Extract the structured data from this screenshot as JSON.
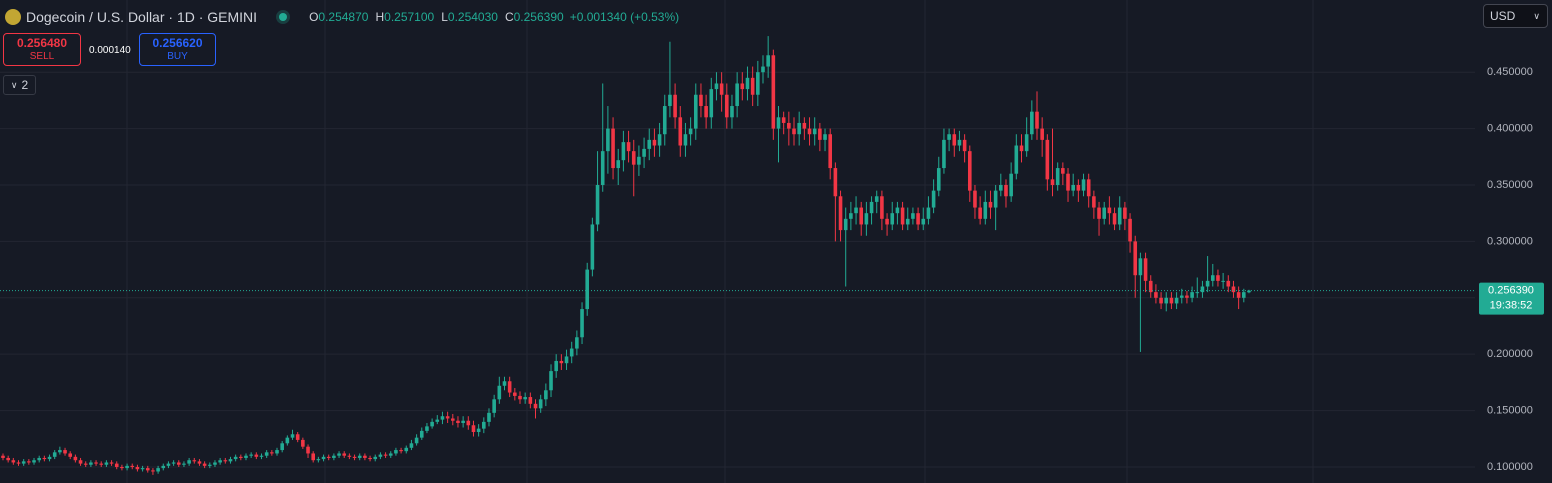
{
  "header": {
    "symbol": "Dogecoin / U.S. Dollar · 1D · GEMINI",
    "ohlc": [
      {
        "key": "O",
        "value": "0.254870"
      },
      {
        "key": "H",
        "value": "0.257100"
      },
      {
        "key": "L",
        "value": "0.254030"
      },
      {
        "key": "C",
        "value": "0.256390"
      }
    ],
    "change": "+0.001340 (+0.53%)"
  },
  "trade": {
    "sell_price": "0.256480",
    "sell_label": "SELL",
    "spread": "0.000140",
    "buy_price": "0.256620",
    "buy_label": "BUY"
  },
  "indicators_count": "2",
  "currency": "USD",
  "chart_data": {
    "type": "candlestick",
    "up_color": "#22ab94",
    "down_color": "#f23645",
    "grid": true,
    "ylim": [
      0.0858,
      0.514
    ],
    "yticks": [
      {
        "value": 0.1,
        "label": "0.100000"
      },
      {
        "value": 0.15,
        "label": "0.150000"
      },
      {
        "value": 0.2,
        "label": "0.200000"
      },
      {
        "value": 0.25,
        "label": "0.250000"
      },
      {
        "value": 0.3,
        "label": "0.300000"
      },
      {
        "value": 0.35,
        "label": "0.350000"
      },
      {
        "value": 0.4,
        "label": "0.400000"
      },
      {
        "value": 0.45,
        "label": "0.450000"
      }
    ],
    "last_price": {
      "value": 0.25639,
      "label": "0.256390"
    },
    "countdown": "19:38:52",
    "open": [
      0.11,
      0.108,
      0.106,
      0.104,
      0.103,
      0.105,
      0.104,
      0.106,
      0.108,
      0.107,
      0.109,
      0.113,
      0.115,
      0.112,
      0.109,
      0.106,
      0.103,
      0.102,
      0.104,
      0.103,
      0.102,
      0.104,
      0.103,
      0.1,
      0.099,
      0.101,
      0.1,
      0.098,
      0.099,
      0.097,
      0.096,
      0.099,
      0.101,
      0.103,
      0.104,
      0.102,
      0.103,
      0.106,
      0.105,
      0.103,
      0.101,
      0.102,
      0.104,
      0.106,
      0.105,
      0.107,
      0.109,
      0.108,
      0.11,
      0.111,
      0.109,
      0.11,
      0.113,
      0.112,
      0.115,
      0.121,
      0.126,
      0.129,
      0.124,
      0.118,
      0.112,
      0.106,
      0.107,
      0.109,
      0.108,
      0.11,
      0.112,
      0.11,
      0.109,
      0.108,
      0.11,
      0.108,
      0.107,
      0.109,
      0.111,
      0.11,
      0.112,
      0.115,
      0.114,
      0.117,
      0.121,
      0.126,
      0.132,
      0.136,
      0.14,
      0.142,
      0.145,
      0.143,
      0.141,
      0.139,
      0.141,
      0.137,
      0.131,
      0.134,
      0.14,
      0.148,
      0.16,
      0.172,
      0.176,
      0.166,
      0.163,
      0.16,
      0.162,
      0.156,
      0.152,
      0.16,
      0.168,
      0.185,
      0.194,
      0.192,
      0.198,
      0.205,
      0.215,
      0.24,
      0.275,
      0.315,
      0.35,
      0.38,
      0.4,
      0.365,
      0.372,
      0.388,
      0.38,
      0.368,
      0.375,
      0.382,
      0.39,
      0.385,
      0.395,
      0.42,
      0.43,
      0.41,
      0.385,
      0.395,
      0.4,
      0.43,
      0.42,
      0.41,
      0.435,
      0.44,
      0.43,
      0.41,
      0.42,
      0.44,
      0.435,
      0.445,
      0.43,
      0.45,
      0.455,
      0.465,
      0.4,
      0.41,
      0.405,
      0.4,
      0.395,
      0.405,
      0.4,
      0.395,
      0.4,
      0.39,
      0.395,
      0.365,
      0.34,
      0.31,
      0.32,
      0.325,
      0.33,
      0.315,
      0.325,
      0.335,
      0.34,
      0.32,
      0.315,
      0.325,
      0.33,
      0.315,
      0.32,
      0.325,
      0.315,
      0.32,
      0.33,
      0.345,
      0.365,
      0.39,
      0.395,
      0.385,
      0.39,
      0.38,
      0.345,
      0.33,
      0.32,
      0.335,
      0.33,
      0.345,
      0.35,
      0.34,
      0.36,
      0.385,
      0.38,
      0.395,
      0.415,
      0.4,
      0.39,
      0.355,
      0.35,
      0.365,
      0.36,
      0.345,
      0.35,
      0.345,
      0.355,
      0.34,
      0.33,
      0.32,
      0.33,
      0.325,
      0.315,
      0.33,
      0.32,
      0.3,
      0.27,
      0.285,
      0.265,
      0.255,
      0.25,
      0.245,
      0.25,
      0.245,
      0.25,
      0.252,
      0.25,
      0.255,
      0.255,
      0.26,
      0.265,
      0.27,
      0.265,
      0.265,
      0.26,
      0.255,
      0.25,
      0.25487
    ],
    "high": [
      0.112,
      0.11,
      0.108,
      0.106,
      0.107,
      0.107,
      0.108,
      0.11,
      0.11,
      0.111,
      0.115,
      0.118,
      0.117,
      0.114,
      0.111,
      0.108,
      0.105,
      0.106,
      0.106,
      0.105,
      0.106,
      0.106,
      0.105,
      0.102,
      0.103,
      0.103,
      0.102,
      0.101,
      0.101,
      0.099,
      0.101,
      0.103,
      0.105,
      0.106,
      0.106,
      0.105,
      0.108,
      0.108,
      0.107,
      0.105,
      0.104,
      0.106,
      0.108,
      0.108,
      0.109,
      0.111,
      0.111,
      0.112,
      0.113,
      0.113,
      0.112,
      0.115,
      0.115,
      0.117,
      0.123,
      0.128,
      0.133,
      0.131,
      0.126,
      0.12,
      0.114,
      0.109,
      0.111,
      0.111,
      0.112,
      0.114,
      0.114,
      0.112,
      0.111,
      0.112,
      0.112,
      0.11,
      0.111,
      0.113,
      0.113,
      0.114,
      0.117,
      0.117,
      0.119,
      0.124,
      0.129,
      0.135,
      0.139,
      0.143,
      0.146,
      0.149,
      0.149,
      0.147,
      0.145,
      0.145,
      0.145,
      0.141,
      0.138,
      0.144,
      0.152,
      0.164,
      0.18,
      0.18,
      0.18,
      0.17,
      0.167,
      0.166,
      0.166,
      0.16,
      0.164,
      0.174,
      0.191,
      0.2,
      0.2,
      0.204,
      0.211,
      0.221,
      0.246,
      0.281,
      0.321,
      0.38,
      0.44,
      0.42,
      0.41,
      0.382,
      0.398,
      0.398,
      0.39,
      0.385,
      0.392,
      0.4,
      0.4,
      0.405,
      0.43,
      0.477,
      0.44,
      0.42,
      0.405,
      0.41,
      0.44,
      0.44,
      0.43,
      0.445,
      0.45,
      0.45,
      0.44,
      0.43,
      0.45,
      0.45,
      0.455,
      0.455,
      0.46,
      0.465,
      0.482,
      0.47,
      0.42,
      0.415,
      0.415,
      0.41,
      0.415,
      0.41,
      0.41,
      0.41,
      0.405,
      0.4,
      0.4,
      0.37,
      0.345,
      0.33,
      0.335,
      0.34,
      0.335,
      0.335,
      0.34,
      0.345,
      0.345,
      0.325,
      0.335,
      0.335,
      0.335,
      0.33,
      0.33,
      0.33,
      0.33,
      0.34,
      0.355,
      0.375,
      0.4,
      0.4,
      0.4,
      0.398,
      0.395,
      0.385,
      0.35,
      0.34,
      0.345,
      0.345,
      0.35,
      0.36,
      0.355,
      0.37,
      0.395,
      0.395,
      0.41,
      0.425,
      0.433,
      0.41,
      0.395,
      0.4,
      0.37,
      0.37,
      0.365,
      0.36,
      0.355,
      0.36,
      0.36,
      0.345,
      0.335,
      0.335,
      0.34,
      0.33,
      0.34,
      0.335,
      0.325,
      0.305,
      0.29,
      0.29,
      0.27,
      0.262,
      0.255,
      0.255,
      0.255,
      0.255,
      0.258,
      0.256,
      0.26,
      0.268,
      0.265,
      0.287,
      0.28,
      0.275,
      0.272,
      0.27,
      0.265,
      0.26,
      0.258,
      0.2571
    ],
    "low": [
      0.106,
      0.104,
      0.102,
      0.101,
      0.101,
      0.102,
      0.102,
      0.104,
      0.105,
      0.105,
      0.107,
      0.111,
      0.11,
      0.107,
      0.104,
      0.101,
      0.1,
      0.1,
      0.101,
      0.1,
      0.1,
      0.101,
      0.098,
      0.097,
      0.097,
      0.098,
      0.096,
      0.096,
      0.095,
      0.093,
      0.094,
      0.097,
      0.099,
      0.101,
      0.1,
      0.1,
      0.101,
      0.103,
      0.101,
      0.099,
      0.099,
      0.1,
      0.102,
      0.103,
      0.103,
      0.105,
      0.106,
      0.106,
      0.108,
      0.107,
      0.107,
      0.108,
      0.11,
      0.11,
      0.113,
      0.119,
      0.124,
      0.122,
      0.116,
      0.108,
      0.104,
      0.104,
      0.105,
      0.106,
      0.106,
      0.108,
      0.108,
      0.107,
      0.106,
      0.106,
      0.106,
      0.105,
      0.105,
      0.107,
      0.108,
      0.108,
      0.11,
      0.112,
      0.112,
      0.115,
      0.119,
      0.124,
      0.13,
      0.134,
      0.138,
      0.138,
      0.139,
      0.137,
      0.135,
      0.135,
      0.133,
      0.127,
      0.127,
      0.13,
      0.136,
      0.144,
      0.156,
      0.168,
      0.162,
      0.159,
      0.156,
      0.156,
      0.152,
      0.143,
      0.148,
      0.154,
      0.162,
      0.179,
      0.186,
      0.186,
      0.192,
      0.199,
      0.209,
      0.234,
      0.269,
      0.309,
      0.344,
      0.36,
      0.355,
      0.35,
      0.362,
      0.37,
      0.34,
      0.358,
      0.365,
      0.372,
      0.375,
      0.375,
      0.385,
      0.41,
      0.4,
      0.375,
      0.375,
      0.385,
      0.39,
      0.41,
      0.4,
      0.4,
      0.425,
      0.415,
      0.4,
      0.4,
      0.41,
      0.425,
      0.425,
      0.42,
      0.42,
      0.44,
      0.445,
      0.39,
      0.37,
      0.395,
      0.385,
      0.385,
      0.385,
      0.39,
      0.385,
      0.385,
      0.38,
      0.38,
      0.355,
      0.3,
      0.3,
      0.26,
      0.31,
      0.315,
      0.305,
      0.305,
      0.315,
      0.325,
      0.31,
      0.305,
      0.31,
      0.315,
      0.31,
      0.31,
      0.315,
      0.31,
      0.31,
      0.315,
      0.325,
      0.34,
      0.36,
      0.38,
      0.375,
      0.38,
      0.37,
      0.335,
      0.32,
      0.315,
      0.315,
      0.32,
      0.31,
      0.34,
      0.33,
      0.335,
      0.355,
      0.37,
      0.375,
      0.39,
      0.39,
      0.375,
      0.345,
      0.34,
      0.345,
      0.35,
      0.335,
      0.34,
      0.335,
      0.34,
      0.33,
      0.32,
      0.305,
      0.315,
      0.315,
      0.31,
      0.31,
      0.31,
      0.29,
      0.25,
      0.202,
      0.255,
      0.25,
      0.245,
      0.24,
      0.238,
      0.24,
      0.24,
      0.245,
      0.245,
      0.246,
      0.25,
      0.25,
      0.255,
      0.26,
      0.26,
      0.258,
      0.255,
      0.25,
      0.24,
      0.246,
      0.25403
    ],
    "close": [
      0.108,
      0.106,
      0.104,
      0.103,
      0.105,
      0.104,
      0.106,
      0.108,
      0.107,
      0.109,
      0.113,
      0.115,
      0.112,
      0.109,
      0.106,
      0.103,
      0.102,
      0.104,
      0.103,
      0.102,
      0.104,
      0.103,
      0.1,
      0.099,
      0.101,
      0.1,
      0.098,
      0.099,
      0.097,
      0.096,
      0.099,
      0.101,
      0.103,
      0.104,
      0.102,
      0.103,
      0.106,
      0.105,
      0.103,
      0.101,
      0.102,
      0.104,
      0.106,
      0.105,
      0.107,
      0.109,
      0.108,
      0.11,
      0.111,
      0.109,
      0.11,
      0.113,
      0.112,
      0.115,
      0.121,
      0.126,
      0.129,
      0.124,
      0.118,
      0.112,
      0.106,
      0.107,
      0.109,
      0.108,
      0.11,
      0.112,
      0.11,
      0.109,
      0.108,
      0.11,
      0.108,
      0.107,
      0.109,
      0.111,
      0.11,
      0.112,
      0.115,
      0.114,
      0.117,
      0.121,
      0.126,
      0.132,
      0.136,
      0.14,
      0.142,
      0.145,
      0.143,
      0.141,
      0.139,
      0.141,
      0.137,
      0.131,
      0.134,
      0.14,
      0.148,
      0.16,
      0.172,
      0.176,
      0.166,
      0.163,
      0.16,
      0.162,
      0.156,
      0.152,
      0.16,
      0.168,
      0.185,
      0.194,
      0.192,
      0.198,
      0.205,
      0.215,
      0.24,
      0.275,
      0.315,
      0.35,
      0.38,
      0.4,
      0.365,
      0.372,
      0.388,
      0.38,
      0.368,
      0.375,
      0.382,
      0.39,
      0.385,
      0.395,
      0.42,
      0.43,
      0.41,
      0.385,
      0.395,
      0.4,
      0.43,
      0.42,
      0.41,
      0.435,
      0.44,
      0.43,
      0.41,
      0.42,
      0.44,
      0.435,
      0.445,
      0.43,
      0.45,
      0.455,
      0.465,
      0.4,
      0.41,
      0.405,
      0.4,
      0.395,
      0.405,
      0.4,
      0.395,
      0.4,
      0.39,
      0.395,
      0.365,
      0.34,
      0.31,
      0.32,
      0.325,
      0.33,
      0.315,
      0.325,
      0.335,
      0.34,
      0.32,
      0.315,
      0.325,
      0.33,
      0.315,
      0.32,
      0.325,
      0.315,
      0.32,
      0.33,
      0.345,
      0.365,
      0.39,
      0.395,
      0.385,
      0.39,
      0.38,
      0.345,
      0.33,
      0.32,
      0.335,
      0.33,
      0.345,
      0.35,
      0.34,
      0.36,
      0.385,
      0.38,
      0.395,
      0.415,
      0.4,
      0.39,
      0.355,
      0.35,
      0.365,
      0.36,
      0.345,
      0.35,
      0.345,
      0.355,
      0.34,
      0.33,
      0.32,
      0.33,
      0.325,
      0.315,
      0.33,
      0.32,
      0.3,
      0.27,
      0.285,
      0.265,
      0.255,
      0.25,
      0.245,
      0.25,
      0.245,
      0.25,
      0.252,
      0.25,
      0.255,
      0.255,
      0.26,
      0.265,
      0.27,
      0.265,
      0.265,
      0.26,
      0.255,
      0.25,
      0.255,
      0.25639
    ]
  }
}
